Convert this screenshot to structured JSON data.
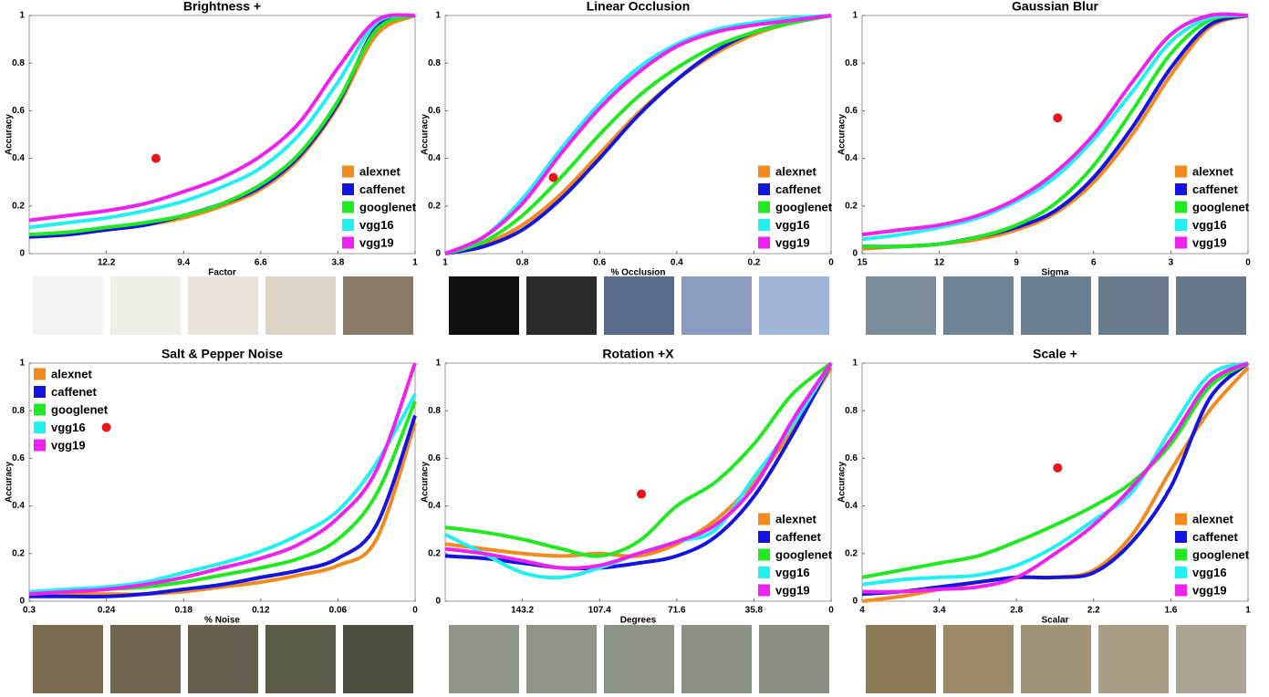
{
  "chart_data": [
    {
      "type": "line",
      "title": "Brightness +",
      "xlabel": "Factor",
      "ylabel": "Accuracy",
      "legend": "lower right",
      "xlim": [
        15,
        1
      ],
      "xticks": [
        12.2,
        9.4,
        6.6,
        3.8,
        1
      ],
      "ylim": [
        0,
        1
      ],
      "yticks": [
        0,
        0.2,
        0.4,
        0.6,
        0.8,
        1
      ],
      "x": [
        15,
        13.6,
        12.2,
        10.8,
        9.4,
        8,
        6.6,
        5.2,
        3.8,
        2.4,
        1
      ],
      "series": [
        {
          "name": "alexnet",
          "color": "#f28a1e",
          "values": [
            0.07,
            0.08,
            0.1,
            0.12,
            0.15,
            0.2,
            0.27,
            0.4,
            0.62,
            0.92,
            1
          ]
        },
        {
          "name": "caffenet",
          "color": "#1414e0",
          "values": [
            0.07,
            0.08,
            0.1,
            0.12,
            0.16,
            0.21,
            0.28,
            0.41,
            0.63,
            0.95,
            1
          ]
        },
        {
          "name": "googlenet",
          "color": "#22e822",
          "values": [
            0.08,
            0.09,
            0.11,
            0.13,
            0.16,
            0.21,
            0.29,
            0.42,
            0.64,
            0.94,
            1
          ]
        },
        {
          "name": "vgg16",
          "color": "#22f0f0",
          "values": [
            0.11,
            0.13,
            0.15,
            0.18,
            0.22,
            0.28,
            0.36,
            0.5,
            0.72,
            0.97,
            1
          ]
        },
        {
          "name": "vgg19",
          "color": "#ee22ee",
          "values": [
            0.14,
            0.16,
            0.18,
            0.21,
            0.26,
            0.32,
            0.41,
            0.55,
            0.78,
            0.98,
            1
          ]
        }
      ],
      "marker": {
        "x": 10.4,
        "y": 0.4,
        "color": "#e8141a"
      }
    },
    {
      "type": "line",
      "title": "Linear Occlusion",
      "xlabel": "% Occlusion",
      "ylabel": "Accuracy",
      "legend": "lower right",
      "xlim": [
        1,
        0
      ],
      "xticks": [
        1,
        0.8,
        0.6,
        0.4,
        0.2,
        0
      ],
      "ylim": [
        0,
        1
      ],
      "yticks": [
        0,
        0.2,
        0.4,
        0.6,
        0.8,
        1
      ],
      "x": [
        1,
        0.9,
        0.8,
        0.7,
        0.6,
        0.5,
        0.4,
        0.3,
        0.2,
        0.1,
        0
      ],
      "series": [
        {
          "name": "alexnet",
          "color": "#f28a1e",
          "values": [
            0,
            0.04,
            0.12,
            0.25,
            0.42,
            0.59,
            0.73,
            0.84,
            0.92,
            0.97,
            1
          ]
        },
        {
          "name": "caffenet",
          "color": "#1414e0",
          "values": [
            0,
            0.03,
            0.1,
            0.23,
            0.4,
            0.58,
            0.73,
            0.85,
            0.93,
            0.97,
            1
          ]
        },
        {
          "name": "googlenet",
          "color": "#22e822",
          "values": [
            0,
            0.05,
            0.16,
            0.32,
            0.5,
            0.66,
            0.78,
            0.87,
            0.93,
            0.97,
            1
          ]
        },
        {
          "name": "vgg16",
          "color": "#22f0f0",
          "values": [
            0,
            0.07,
            0.23,
            0.44,
            0.63,
            0.78,
            0.88,
            0.94,
            0.97,
            0.99,
            1
          ]
        },
        {
          "name": "vgg19",
          "color": "#ee22ee",
          "values": [
            0,
            0.07,
            0.21,
            0.42,
            0.61,
            0.76,
            0.87,
            0.93,
            0.96,
            0.98,
            1
          ]
        }
      ],
      "marker": {
        "x": 0.72,
        "y": 0.32,
        "color": "#e8141a"
      }
    },
    {
      "type": "line",
      "title": "Gaussian Blur",
      "xlabel": "Sigma",
      "ylabel": "Accuracy",
      "legend": "lower right",
      "xlim": [
        15,
        0
      ],
      "xticks": [
        15,
        12,
        9,
        6,
        3,
        0
      ],
      "ylim": [
        0,
        1
      ],
      "yticks": [
        0,
        0.2,
        0.4,
        0.6,
        0.8,
        1
      ],
      "x": [
        15,
        13.5,
        12,
        10.5,
        9,
        7.5,
        6,
        4.5,
        3,
        1.5,
        0
      ],
      "series": [
        {
          "name": "alexnet",
          "color": "#f28a1e",
          "values": [
            0.02,
            0.03,
            0.04,
            0.06,
            0.1,
            0.17,
            0.3,
            0.5,
            0.75,
            0.95,
            1
          ]
        },
        {
          "name": "caffenet",
          "color": "#1414e0",
          "values": [
            0.03,
            0.03,
            0.04,
            0.07,
            0.11,
            0.18,
            0.32,
            0.53,
            0.78,
            0.96,
            1
          ]
        },
        {
          "name": "googlenet",
          "color": "#22e822",
          "values": [
            0.03,
            0.03,
            0.04,
            0.07,
            0.12,
            0.21,
            0.37,
            0.6,
            0.84,
            0.98,
            1
          ]
        },
        {
          "name": "vgg16",
          "color": "#22f0f0",
          "values": [
            0.06,
            0.08,
            0.11,
            0.15,
            0.22,
            0.32,
            0.48,
            0.68,
            0.89,
            0.99,
            1
          ]
        },
        {
          "name": "vgg19",
          "color": "#ee22ee",
          "values": [
            0.08,
            0.1,
            0.12,
            0.16,
            0.23,
            0.34,
            0.5,
            0.72,
            0.92,
            1,
            1
          ]
        }
      ],
      "marker": {
        "x": 7.4,
        "y": 0.57,
        "color": "#e8141a"
      }
    },
    {
      "type": "line",
      "title": "Salt & Pepper Noise",
      "xlabel": "% Noise",
      "ylabel": "Accuracy",
      "legend": "upper left",
      "xlim": [
        0.3,
        0
      ],
      "xticks": [
        0.3,
        0.24,
        0.18,
        0.12,
        0.06,
        0
      ],
      "ylim": [
        0,
        1
      ],
      "yticks": [
        0,
        0.2,
        0.4,
        0.6,
        0.8,
        1
      ],
      "x": [
        0.3,
        0.27,
        0.24,
        0.21,
        0.18,
        0.15,
        0.12,
        0.09,
        0.06,
        0.03,
        0
      ],
      "series": [
        {
          "name": "alexnet",
          "color": "#f28a1e",
          "values": [
            0.03,
            0.03,
            0.03,
            0.03,
            0.04,
            0.06,
            0.08,
            0.11,
            0.15,
            0.26,
            0.75
          ]
        },
        {
          "name": "caffenet",
          "color": "#1414e0",
          "values": [
            0.02,
            0.02,
            0.02,
            0.03,
            0.05,
            0.07,
            0.1,
            0.13,
            0.18,
            0.32,
            0.78
          ]
        },
        {
          "name": "googlenet",
          "color": "#22e822",
          "values": [
            0.03,
            0.04,
            0.05,
            0.06,
            0.08,
            0.11,
            0.14,
            0.18,
            0.26,
            0.45,
            0.84
          ]
        },
        {
          "name": "vgg16",
          "color": "#22f0f0",
          "values": [
            0.04,
            0.05,
            0.06,
            0.08,
            0.12,
            0.16,
            0.21,
            0.28,
            0.38,
            0.58,
            0.87
          ]
        },
        {
          "name": "vgg19",
          "color": "#ee22ee",
          "values": [
            0.03,
            0.04,
            0.05,
            0.07,
            0.1,
            0.14,
            0.18,
            0.24,
            0.35,
            0.55,
            1
          ]
        }
      ],
      "marker": {
        "x": 0.24,
        "y": 0.73,
        "color": "#e8141a"
      }
    },
    {
      "type": "line",
      "title": "Rotation +X",
      "xlabel": "Degrees",
      "ylabel": "Accuracy",
      "legend": "lower right",
      "xlim": [
        179,
        0
      ],
      "xticks": [
        143.2,
        107.4,
        71.6,
        35.8,
        0
      ],
      "ylim": [
        0,
        1
      ],
      "yticks": [
        0,
        0.2,
        0.4,
        0.6,
        0.8,
        1
      ],
      "x": [
        179,
        161.1,
        143.2,
        125.3,
        107.4,
        89.5,
        71.6,
        53.7,
        35.8,
        17.9,
        0
      ],
      "series": [
        {
          "name": "alexnet",
          "color": "#f28a1e",
          "values": [
            0.24,
            0.22,
            0.2,
            0.19,
            0.2,
            0.19,
            0.24,
            0.34,
            0.5,
            0.72,
            0.98
          ]
        },
        {
          "name": "caffenet",
          "color": "#1414e0",
          "values": [
            0.19,
            0.18,
            0.16,
            0.14,
            0.14,
            0.16,
            0.19,
            0.27,
            0.44,
            0.7,
            1
          ]
        },
        {
          "name": "googlenet",
          "color": "#22e822",
          "values": [
            0.31,
            0.29,
            0.26,
            0.22,
            0.19,
            0.25,
            0.4,
            0.5,
            0.66,
            0.87,
            1
          ]
        },
        {
          "name": "vgg16",
          "color": "#22f0f0",
          "values": [
            0.28,
            0.2,
            0.12,
            0.1,
            0.14,
            0.2,
            0.25,
            0.3,
            0.52,
            0.74,
            1
          ]
        },
        {
          "name": "vgg19",
          "color": "#ee22ee",
          "values": [
            0.22,
            0.2,
            0.17,
            0.14,
            0.15,
            0.2,
            0.25,
            0.32,
            0.48,
            0.76,
            1
          ]
        }
      ],
      "marker": {
        "x": 88,
        "y": 0.45,
        "color": "#e8141a"
      }
    },
    {
      "type": "line",
      "title": "Scale +",
      "xlabel": "Scalar",
      "ylabel": "Accuracy",
      "legend": "lower right",
      "xlim": [
        4,
        1
      ],
      "xticks": [
        4,
        3.4,
        2.8,
        2.2,
        1.6,
        1
      ],
      "ylim": [
        0,
        1
      ],
      "yticks": [
        0,
        0.2,
        0.4,
        0.6,
        0.8,
        1
      ],
      "x": [
        4,
        3.7,
        3.4,
        3.1,
        2.8,
        2.5,
        2.2,
        1.9,
        1.6,
        1.3,
        1
      ],
      "series": [
        {
          "name": "alexnet",
          "color": "#f28a1e",
          "values": [
            0,
            0.02,
            0.05,
            0.08,
            0.1,
            0.1,
            0.13,
            0.28,
            0.55,
            0.8,
            0.98
          ]
        },
        {
          "name": "caffenet",
          "color": "#1414e0",
          "values": [
            0.03,
            0.04,
            0.06,
            0.08,
            0.1,
            0.1,
            0.12,
            0.25,
            0.48,
            0.85,
            1
          ]
        },
        {
          "name": "googlenet",
          "color": "#22e822",
          "values": [
            0.1,
            0.13,
            0.16,
            0.19,
            0.25,
            0.32,
            0.4,
            0.5,
            0.66,
            0.9,
            1
          ]
        },
        {
          "name": "vgg16",
          "color": "#22f0f0",
          "values": [
            0.07,
            0.09,
            0.1,
            0.11,
            0.15,
            0.23,
            0.34,
            0.46,
            0.72,
            0.95,
            1
          ]
        },
        {
          "name": "vgg19",
          "color": "#ee22ee",
          "values": [
            0.04,
            0.04,
            0.05,
            0.06,
            0.1,
            0.2,
            0.32,
            0.48,
            0.68,
            0.92,
            1
          ]
        }
      ],
      "marker": {
        "x": 2.48,
        "y": 0.56,
        "color": "#e8141a"
      }
    }
  ]
}
